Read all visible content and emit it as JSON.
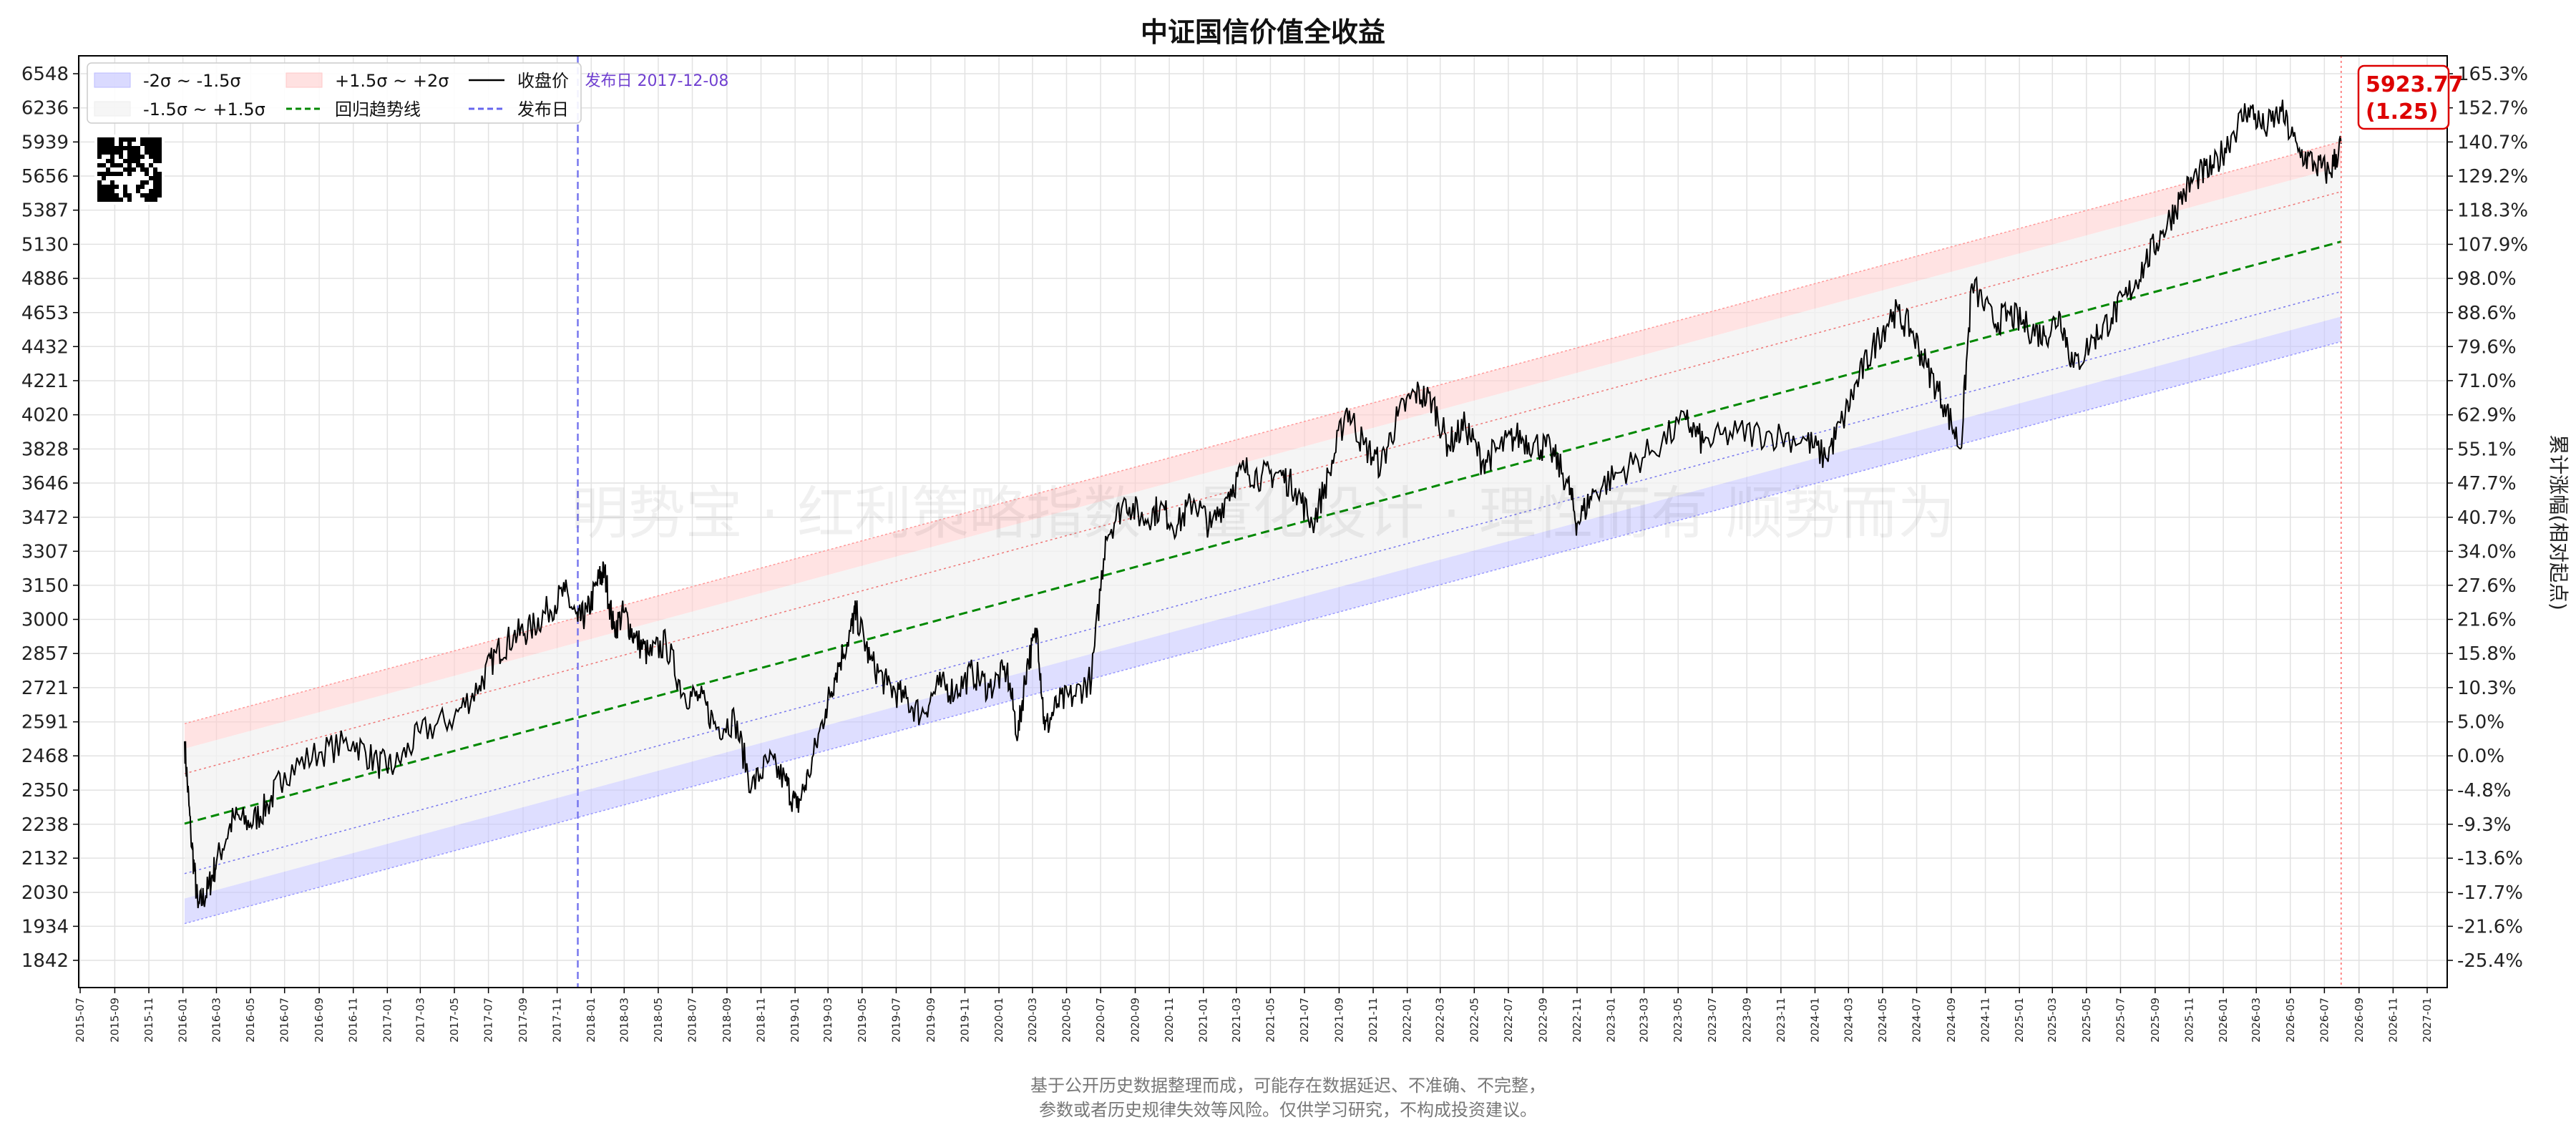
{
  "chart_data": {
    "type": "line",
    "title": "中证国信价值全收益",
    "ylabel_right": "累计涨幅(相对起点)",
    "watermark": "明势宝 · 红利策略指数  ·  量化设计 · 理性而有  顺势而为",
    "x_ticks": [
      "2015-07",
      "2015-09",
      "2015-11",
      "2016-01",
      "2016-03",
      "2016-05",
      "2016-07",
      "2016-09",
      "2016-11",
      "2017-01",
      "2017-03",
      "2017-05",
      "2017-07",
      "2017-09",
      "2017-11",
      "2018-01",
      "2018-03",
      "2018-05",
      "2018-07",
      "2018-09",
      "2018-11",
      "2019-01",
      "2019-03",
      "2019-05",
      "2019-07",
      "2019-09",
      "2019-11",
      "2020-01",
      "2020-03",
      "2020-05",
      "2020-07",
      "2020-09",
      "2020-11",
      "2021-01",
      "2021-03",
      "2021-05",
      "2021-07",
      "2021-09",
      "2021-11",
      "2022-01",
      "2022-03",
      "2022-05",
      "2022-07",
      "2022-09",
      "2022-11",
      "2023-01",
      "2023-03",
      "2023-05",
      "2023-07",
      "2023-09",
      "2023-11",
      "2024-01",
      "2024-03",
      "2024-05",
      "2024-07",
      "2024-09",
      "2024-11",
      "2025-01",
      "2025-03",
      "2025-05",
      "2025-07",
      "2025-09",
      "2025-11",
      "2026-01",
      "2026-03",
      "2026-05",
      "2026-07",
      "2026-09",
      "2026-11",
      "2027-01"
    ],
    "y_ticks_left": [
      "6548",
      "6236",
      "5939",
      "5656",
      "5387",
      "5130",
      "4886",
      "4653",
      "4432",
      "4221",
      "4020",
      "3828",
      "3646",
      "3472",
      "3307",
      "3150",
      "3000",
      "2857",
      "2721",
      "2591",
      "2468",
      "2350",
      "2238",
      "2132",
      "2030",
      "1934",
      "1842"
    ],
    "y_ticks_right": [
      "165.3%",
      "152.7%",
      "140.7%",
      "129.2%",
      "118.3%",
      "107.9%",
      "98.0%",
      "88.6%",
      "79.6%",
      "71.0%",
      "62.9%",
      "55.1%",
      "47.7%",
      "40.7%",
      "34.0%",
      "27.6%",
      "21.6%",
      "15.8%",
      "10.3%",
      "5.0%",
      "0.0%",
      "-4.8%",
      "-9.3%",
      "-13.6%",
      "-17.7%",
      "-21.6%",
      "-25.4%"
    ],
    "y_scale": "log",
    "grid": true,
    "legend": {
      "placement": "top-left",
      "items": [
        {
          "label": "-2σ ~ -1.5σ",
          "kind": "band",
          "color": "#bcbcff"
        },
        {
          "label": "+1.5σ ~ +2σ",
          "kind": "band",
          "color": "#ffc8c8"
        },
        {
          "label": "收盘价",
          "kind": "line",
          "color": "#000000"
        },
        {
          "label": "-1.5σ ~ +1.5σ",
          "kind": "band",
          "color": "#eeeeee"
        },
        {
          "label": "回归趋势线",
          "kind": "dashed",
          "color": "#008800"
        },
        {
          "label": "发布日",
          "kind": "dashed",
          "color": "#6666ee"
        }
      ]
    },
    "publish": {
      "label": "发布日 2017-12-08",
      "date": "2017-12-08"
    },
    "regression": {
      "start_date": "2016-01-04",
      "end_date": "2026-07-31",
      "start_value": 2240,
      "end_value": 5150
    },
    "bands_sigma_ratio": 0.0715,
    "series": [
      {
        "name": "收盘价",
        "points": [
          [
            "2016-01-04",
            2520
          ],
          [
            "2016-01-15",
            2210
          ],
          [
            "2016-01-28",
            1985
          ],
          [
            "2016-02-15",
            2040
          ],
          [
            "2016-03-01",
            2120
          ],
          [
            "2016-04-01",
            2260
          ],
          [
            "2016-05-01",
            2240
          ],
          [
            "2016-06-01",
            2300
          ],
          [
            "2016-07-01",
            2410
          ],
          [
            "2016-09-01",
            2480
          ],
          [
            "2016-11-01",
            2520
          ],
          [
            "2016-12-15",
            2440
          ],
          [
            "2017-01-15",
            2430
          ],
          [
            "2017-03-01",
            2550
          ],
          [
            "2017-05-01",
            2610
          ],
          [
            "2017-06-15",
            2730
          ],
          [
            "2017-07-15",
            2860
          ],
          [
            "2017-08-15",
            2930
          ],
          [
            "2017-09-15",
            2960
          ],
          [
            "2017-10-15",
            3040
          ],
          [
            "2017-11-15",
            3120
          ],
          [
            "2017-12-08",
            2990
          ],
          [
            "2017-12-25",
            3030
          ],
          [
            "2018-01-15",
            3180
          ],
          [
            "2018-01-25",
            3210
          ],
          [
            "2018-02-10",
            2960
          ],
          [
            "2018-03-01",
            3030
          ],
          [
            "2018-03-20",
            2920
          ],
          [
            "2018-04-15",
            2850
          ],
          [
            "2018-05-15",
            2900
          ],
          [
            "2018-06-15",
            2700
          ],
          [
            "2018-07-15",
            2680
          ],
          [
            "2018-08-15",
            2570
          ],
          [
            "2018-09-15",
            2600
          ],
          [
            "2018-10-15",
            2360
          ],
          [
            "2018-11-15",
            2450
          ],
          [
            "2018-12-15",
            2380
          ],
          [
            "2019-01-04",
            2290
          ],
          [
            "2019-01-25",
            2400
          ],
          [
            "2019-02-25",
            2640
          ],
          [
            "2019-03-15",
            2780
          ],
          [
            "2019-04-10",
            2950
          ],
          [
            "2019-04-20",
            3030
          ],
          [
            "2019-05-15",
            2830
          ],
          [
            "2019-06-15",
            2730
          ],
          [
            "2019-07-15",
            2680
          ],
          [
            "2019-08-15",
            2620
          ],
          [
            "2019-09-15",
            2730
          ],
          [
            "2019-10-15",
            2710
          ],
          [
            "2019-11-15",
            2780
          ],
          [
            "2019-12-15",
            2720
          ],
          [
            "2020-01-15",
            2790
          ],
          [
            "2020-02-04",
            2540
          ],
          [
            "2020-02-20",
            2810
          ],
          [
            "2020-03-10",
            2950
          ],
          [
            "2020-03-23",
            2560
          ],
          [
            "2020-04-15",
            2660
          ],
          [
            "2020-05-15",
            2690
          ],
          [
            "2020-06-15",
            2760
          ],
          [
            "2020-07-10",
            3380
          ],
          [
            "2020-08-15",
            3560
          ],
          [
            "2020-09-15",
            3460
          ],
          [
            "2020-10-15",
            3520
          ],
          [
            "2020-11-15",
            3430
          ],
          [
            "2020-12-15",
            3560
          ],
          [
            "2021-01-15",
            3420
          ],
          [
            "2021-02-15",
            3600
          ],
          [
            "2021-03-15",
            3720
          ],
          [
            "2021-04-15",
            3680
          ],
          [
            "2021-05-15",
            3700
          ],
          [
            "2021-06-15",
            3620
          ],
          [
            "2021-07-15",
            3440
          ],
          [
            "2021-08-15",
            3700
          ],
          [
            "2021-09-15",
            4060
          ],
          [
            "2021-10-15",
            3850
          ],
          [
            "2021-11-15",
            3740
          ],
          [
            "2021-12-15",
            4010
          ],
          [
            "2022-01-15",
            4150
          ],
          [
            "2022-02-15",
            4100
          ],
          [
            "2022-03-15",
            3850
          ],
          [
            "2022-04-15",
            3960
          ],
          [
            "2022-05-15",
            3760
          ],
          [
            "2022-06-15",
            3830
          ],
          [
            "2022-07-15",
            3900
          ],
          [
            "2022-08-15",
            3860
          ],
          [
            "2022-09-15",
            3820
          ],
          [
            "2022-10-15",
            3650
          ],
          [
            "2022-11-01",
            3440
          ],
          [
            "2022-12-01",
            3600
          ],
          [
            "2023-01-15",
            3700
          ],
          [
            "2023-03-15",
            3820
          ],
          [
            "2023-05-15",
            3990
          ],
          [
            "2023-06-15",
            3860
          ],
          [
            "2023-08-15",
            3920
          ],
          [
            "2023-10-15",
            3910
          ],
          [
            "2023-12-15",
            3880
          ],
          [
            "2024-01-20",
            3780
          ],
          [
            "2024-02-20",
            3990
          ],
          [
            "2024-03-20",
            4240
          ],
          [
            "2024-04-20",
            4470
          ],
          [
            "2024-05-20",
            4660
          ],
          [
            "2024-06-20",
            4550
          ],
          [
            "2024-07-20",
            4300
          ],
          [
            "2024-08-20",
            4080
          ],
          [
            "2024-09-18",
            3830
          ],
          [
            "2024-10-08",
            4850
          ],
          [
            "2024-11-15",
            4590
          ],
          [
            "2024-12-15",
            4640
          ],
          [
            "2025-01-15",
            4560
          ],
          [
            "2025-02-15",
            4500
          ],
          [
            "2025-03-15",
            4640
          ],
          [
            "2025-04-08",
            4300
          ],
          [
            "2025-05-15",
            4490
          ],
          [
            "2025-06-15",
            4620
          ],
          [
            "2025-07-15",
            4780
          ],
          [
            "2025-08-15",
            5000
          ],
          [
            "2025-09-15",
            5230
          ],
          [
            "2025-10-15",
            5470
          ],
          [
            "2025-11-15",
            5660
          ],
          [
            "2025-12-15",
            5720
          ],
          [
            "2026-01-15",
            5990
          ],
          [
            "2026-02-15",
            6240
          ],
          [
            "2026-03-15",
            6050
          ],
          [
            "2026-04-15",
            6200
          ],
          [
            "2026-05-15",
            5860
          ],
          [
            "2026-06-15",
            5750
          ],
          [
            "2026-07-10",
            5680
          ],
          [
            "2026-07-31",
            5923.77
          ]
        ]
      }
    ],
    "last_value_label": {
      "value": "5923.77",
      "ratio": "(1.25)",
      "color": "#dd0000"
    },
    "line_color": "#000000",
    "band_colors": {
      "upper": "#ffd0d0",
      "middle": "#f2f2f2",
      "lower": "#c8c8ff",
      "trend": "#008800",
      "publish": "#7777ee"
    }
  },
  "footer": {
    "line1": "基于公开历史数据整理而成，可能存在数据延迟、不准确、不完整，",
    "line2": "参数或者历史规律失效等风险。仅供学习研究，不构成投资建议。"
  }
}
